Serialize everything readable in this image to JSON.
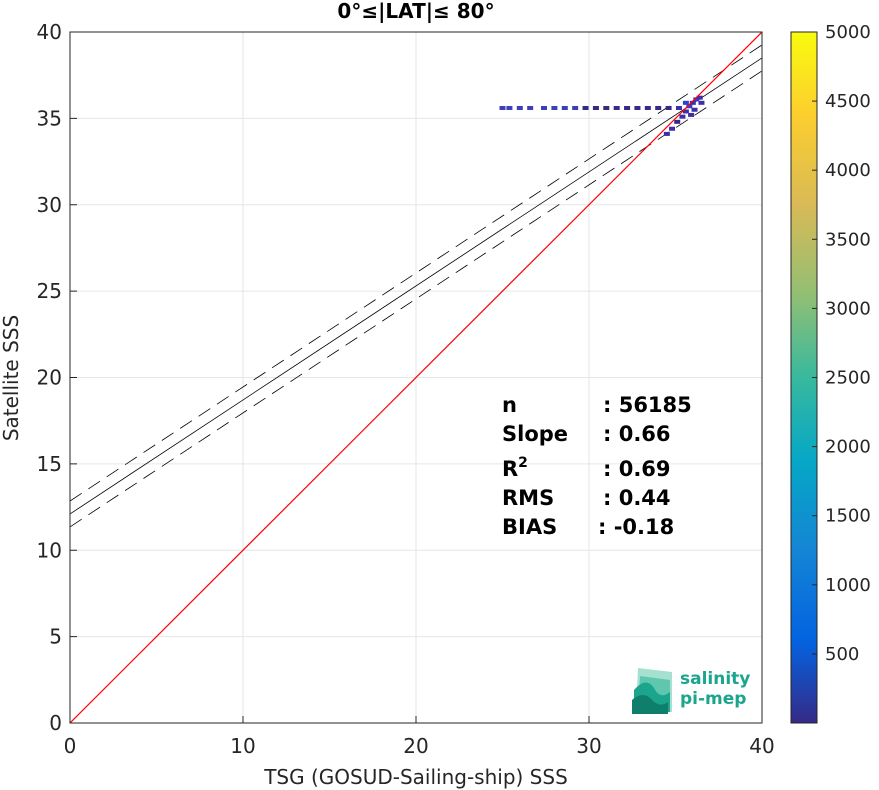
{
  "chart_data": {
    "type": "scatter",
    "title": "0°≤|LAT|≤ 80°",
    "xlabel": "TSG (GOSUD-Sailing-ship) SSS",
    "ylabel": "Satellite SSS",
    "xlim": [
      0,
      40
    ],
    "ylim": [
      0,
      40
    ],
    "x_ticks": [
      "0",
      "10",
      "20",
      "30",
      "40"
    ],
    "y_ticks": [
      "0",
      "5",
      "10",
      "15",
      "20",
      "25",
      "30",
      "35",
      "40"
    ],
    "grid": true,
    "colorbar": {
      "range": [
        0,
        5000
      ],
      "ticks": [
        "500",
        "1000",
        "1500",
        "2000",
        "2500",
        "3000",
        "3500",
        "4000",
        "4500",
        "5000"
      ],
      "colormap": "parula"
    },
    "identity_line": {
      "x": [
        0,
        40
      ],
      "y": [
        0,
        40
      ],
      "color": "#ff0000"
    },
    "regression_line": {
      "slope": 0.66,
      "intercept": 12.1,
      "color": "#000000"
    },
    "confidence_band": {
      "offset": 0.75,
      "style": "dashed"
    },
    "points": [
      {
        "x": 25.0,
        "y": 35.6,
        "count": 60
      },
      {
        "x": 25.4,
        "y": 35.6,
        "count": 60
      },
      {
        "x": 26.0,
        "y": 35.6,
        "count": 80
      },
      {
        "x": 26.6,
        "y": 35.6,
        "count": 80
      },
      {
        "x": 27.4,
        "y": 35.6,
        "count": 100
      },
      {
        "x": 28.0,
        "y": 35.6,
        "count": 100
      },
      {
        "x": 28.6,
        "y": 35.6,
        "count": 120
      },
      {
        "x": 29.2,
        "y": 35.6,
        "count": 120
      },
      {
        "x": 29.8,
        "y": 35.6,
        "count": 150
      },
      {
        "x": 30.4,
        "y": 35.6,
        "count": 150
      },
      {
        "x": 31.0,
        "y": 35.6,
        "count": 150
      },
      {
        "x": 31.6,
        "y": 35.6,
        "count": 150
      },
      {
        "x": 32.2,
        "y": 35.6,
        "count": 200
      },
      {
        "x": 32.8,
        "y": 35.6,
        "count": 200
      },
      {
        "x": 33.4,
        "y": 35.6,
        "count": 200
      },
      {
        "x": 34.0,
        "y": 35.6,
        "count": 250
      },
      {
        "x": 34.6,
        "y": 35.6,
        "count": 250
      },
      {
        "x": 35.2,
        "y": 35.6,
        "count": 300
      },
      {
        "x": 34.5,
        "y": 34.1,
        "count": 300
      },
      {
        "x": 34.8,
        "y": 34.4,
        "count": 300
      },
      {
        "x": 35.1,
        "y": 34.8,
        "count": 250
      },
      {
        "x": 35.4,
        "y": 35.1,
        "count": 300
      },
      {
        "x": 35.6,
        "y": 35.4,
        "count": 400
      },
      {
        "x": 35.8,
        "y": 35.7,
        "count": 500
      },
      {
        "x": 36.0,
        "y": 35.9,
        "count": 400
      },
      {
        "x": 36.2,
        "y": 36.1,
        "count": 500
      },
      {
        "x": 36.4,
        "y": 36.2,
        "count": 400
      },
      {
        "x": 35.9,
        "y": 35.2,
        "count": 400
      },
      {
        "x": 35.6,
        "y": 35.9,
        "count": 500
      },
      {
        "x": 36.1,
        "y": 35.5,
        "count": 400
      },
      {
        "x": 36.5,
        "y": 35.9,
        "count": 300
      }
    ],
    "stats": [
      {
        "label": "n",
        "value": ": 56185"
      },
      {
        "label": "Slope",
        "value": ": 0.66"
      },
      {
        "label": "R",
        "sup": "2",
        "value": ": 0.69"
      },
      {
        "label": "RMS",
        "value": ": 0.44"
      },
      {
        "label": "BIAS",
        "value": ": -0.18"
      }
    ]
  },
  "logo": {
    "line1": "salinity",
    "line2": "pi-mep"
  }
}
